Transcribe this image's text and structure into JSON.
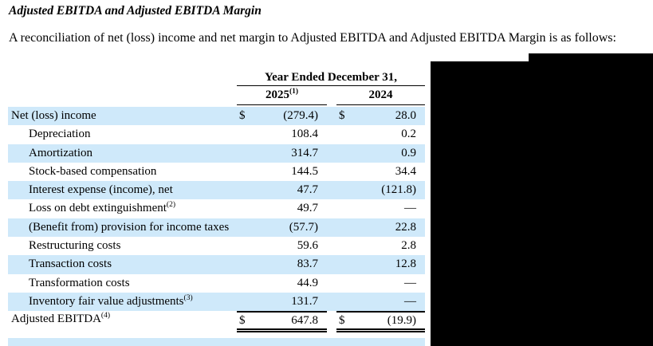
{
  "document": {
    "title": "Adjusted EBITDA and Adjusted EBITDA Margin",
    "intro": "A reconciliation of net (loss) income and net margin to Adjusted EBITDA and Adjusted EBITDA Margin is as follows:"
  },
  "table": {
    "period_header": "Year Ended December 31,",
    "currency_symbol": "$",
    "columns": [
      {
        "label": "2025",
        "footnote": "(1)"
      },
      {
        "label": "2024",
        "footnote": ""
      }
    ],
    "rows": [
      {
        "label": "Net (loss) income",
        "footnote": "",
        "indent": false,
        "currency": true,
        "values": [
          "(279.4)",
          "28.0"
        ],
        "shaded": true,
        "total": false
      },
      {
        "label": "Depreciation",
        "footnote": "",
        "indent": true,
        "currency": false,
        "values": [
          "108.4",
          "0.2"
        ],
        "shaded": false,
        "total": false
      },
      {
        "label": "Amortization",
        "footnote": "",
        "indent": true,
        "currency": false,
        "values": [
          "314.7",
          "0.9"
        ],
        "shaded": true,
        "total": false
      },
      {
        "label": "Stock-based compensation",
        "footnote": "",
        "indent": true,
        "currency": false,
        "values": [
          "144.5",
          "34.4"
        ],
        "shaded": false,
        "total": false
      },
      {
        "label": "Interest expense (income), net",
        "footnote": "",
        "indent": true,
        "currency": false,
        "values": [
          "47.7",
          "(121.8)"
        ],
        "shaded": true,
        "total": false
      },
      {
        "label": "Loss on debt extinguishment",
        "footnote": "(2)",
        "indent": true,
        "currency": false,
        "values": [
          "49.7",
          "—"
        ],
        "shaded": false,
        "total": false
      },
      {
        "label": "(Benefit from) provision for income taxes",
        "footnote": "",
        "indent": true,
        "currency": false,
        "values": [
          "(57.7)",
          "22.8"
        ],
        "shaded": true,
        "total": false
      },
      {
        "label": "Restructuring costs",
        "footnote": "",
        "indent": true,
        "currency": false,
        "values": [
          "59.6",
          "2.8"
        ],
        "shaded": false,
        "total": false
      },
      {
        "label": "Transaction costs",
        "footnote": "",
        "indent": true,
        "currency": false,
        "values": [
          "83.7",
          "12.8"
        ],
        "shaded": true,
        "total": false
      },
      {
        "label": "Transformation costs",
        "footnote": "",
        "indent": true,
        "currency": false,
        "values": [
          "44.9",
          "—"
        ],
        "shaded": false,
        "total": false
      },
      {
        "label": "Inventory fair value adjustments",
        "footnote": "(3)",
        "indent": true,
        "currency": false,
        "values": [
          "131.7",
          "—"
        ],
        "shaded": true,
        "total": false
      },
      {
        "label": "Adjusted EBITDA",
        "footnote": "(4)",
        "indent": false,
        "currency": true,
        "values": [
          "647.8",
          "(19.9)"
        ],
        "shaded": false,
        "total": true
      }
    ]
  },
  "colors": {
    "row_shade": "#cfe9fa",
    "redaction": "#000000"
  }
}
